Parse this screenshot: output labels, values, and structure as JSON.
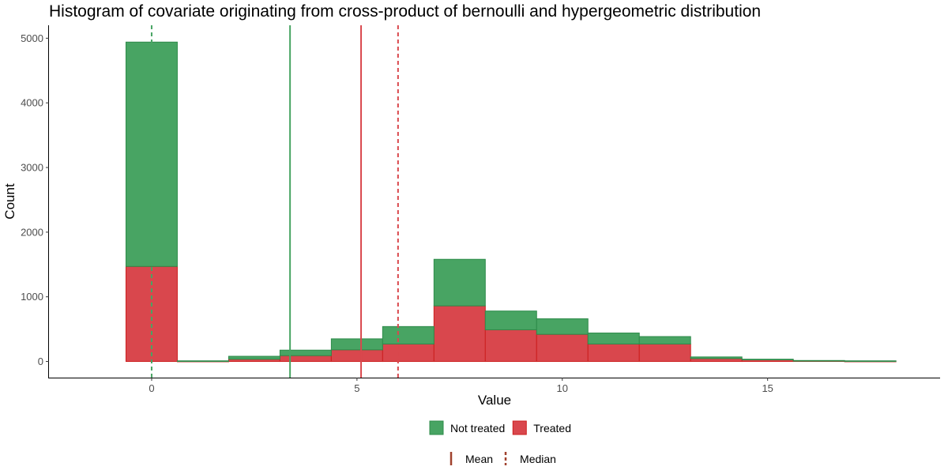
{
  "chart_data": {
    "type": "bar",
    "stacked": true,
    "title": "Histogram of covariate originating from cross-product of bernoulli and hypergeometric distribution",
    "xlabel": "Value",
    "ylabel": "Count",
    "xlim": [
      -2.5,
      19.2
    ],
    "ylim": [
      -250,
      5200
    ],
    "x_ticks": [
      0,
      5,
      10,
      15
    ],
    "y_ticks": [
      0,
      1000,
      2000,
      3000,
      4000,
      5000
    ],
    "grid": false,
    "bins": [
      {
        "x0": -0.625,
        "x1": 0.625
      },
      {
        "x0": 0.625,
        "x1": 1.875
      },
      {
        "x0": 1.875,
        "x1": 3.125
      },
      {
        "x0": 3.125,
        "x1": 4.375
      },
      {
        "x0": 4.375,
        "x1": 5.625
      },
      {
        "x0": 5.625,
        "x1": 6.875
      },
      {
        "x0": 6.875,
        "x1": 8.125
      },
      {
        "x0": 8.125,
        "x1": 9.375
      },
      {
        "x0": 9.375,
        "x1": 10.625
      },
      {
        "x0": 10.625,
        "x1": 11.875
      },
      {
        "x0": 11.875,
        "x1": 13.125
      },
      {
        "x0": 13.125,
        "x1": 14.375
      },
      {
        "x0": 14.375,
        "x1": 15.625
      },
      {
        "x0": 15.625,
        "x1": 16.875
      },
      {
        "x0": 16.875,
        "x1": 18.125
      }
    ],
    "series": [
      {
        "name": "Treated",
        "color": "#d9474d",
        "stroke": "#cc1f1f",
        "values": [
          1470,
          5,
          35,
          90,
          180,
          270,
          860,
          490,
          420,
          270,
          270,
          45,
          25,
          10,
          5
        ]
      },
      {
        "name": "Not treated",
        "color": "#48a463",
        "stroke": "#2e8b4a",
        "values": [
          3470,
          5,
          45,
          85,
          170,
          270,
          720,
          290,
          240,
          170,
          115,
          25,
          10,
          5,
          5
        ]
      }
    ],
    "reference_lines": [
      {
        "group": "Not treated",
        "stat": "Mean",
        "x": 3.37,
        "color": "#48a463",
        "dashed": false
      },
      {
        "group": "Not treated",
        "stat": "Median",
        "x": 0,
        "color": "#48a463",
        "dashed": true
      },
      {
        "group": "Treated",
        "stat": "Mean",
        "x": 5.1,
        "color": "#d9474d",
        "dashed": false
      },
      {
        "group": "Treated",
        "stat": "Median",
        "x": 6,
        "color": "#d9474d",
        "dashed": true
      }
    ],
    "legend": {
      "placement": "bottom",
      "fill_items": [
        {
          "label": "Not treated",
          "color": "#48a463",
          "stroke": "#2e8b4a"
        },
        {
          "label": "Treated",
          "color": "#d9474d",
          "stroke": "#cc1f1f"
        }
      ],
      "line_items": [
        {
          "label": "Mean",
          "color": "#a0412d",
          "dashed": false
        },
        {
          "label": "Median",
          "color": "#a0412d",
          "dashed": true
        }
      ]
    }
  }
}
